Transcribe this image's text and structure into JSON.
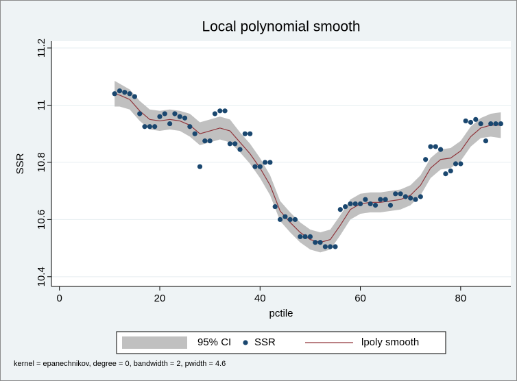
{
  "chart_data": {
    "type": "lpoly",
    "title": "Local polynomial smooth",
    "xlabel": "pctile",
    "ylabel": "SSR",
    "note": "kernel = epanechnikov, degree = 0, bandwidth = 2, pwidth = 4.6",
    "xlim": [
      -1.6,
      90
    ],
    "ylim": [
      10.366,
      11.224
    ],
    "xticks": [
      0,
      20,
      40,
      60,
      80
    ],
    "yticks": [
      10.4,
      10.6,
      10.8,
      11,
      11.2
    ],
    "grid": true,
    "legend": "bottom",
    "series": [
      {
        "name": "95% CI",
        "color": "#c0c0c0",
        "type": "area",
        "x": [
          11,
          12,
          14,
          16,
          18,
          20,
          22,
          24,
          26,
          28,
          30,
          32,
          34,
          36,
          38,
          40,
          42,
          44,
          46,
          48,
          50,
          52,
          54,
          56,
          58,
          60,
          62,
          64,
          66,
          68,
          70,
          72,
          74,
          76,
          78,
          80,
          82,
          84,
          86,
          88
        ],
        "lower": [
          10.995,
          10.995,
          10.985,
          10.945,
          10.915,
          10.91,
          10.915,
          10.91,
          10.89,
          10.86,
          10.87,
          10.88,
          10.87,
          10.835,
          10.795,
          10.745,
          10.685,
          10.595,
          10.555,
          10.52,
          10.495,
          10.485,
          10.495,
          10.545,
          10.6,
          10.62,
          10.625,
          10.625,
          10.63,
          10.635,
          10.65,
          10.685,
          10.745,
          10.775,
          10.78,
          10.805,
          10.855,
          10.885,
          10.89,
          10.885
        ],
        "upper": [
          11.085,
          11.075,
          11.055,
          11.015,
          10.985,
          10.98,
          10.985,
          10.98,
          10.97,
          10.94,
          10.95,
          10.96,
          10.95,
          10.905,
          10.865,
          10.815,
          10.755,
          10.665,
          10.625,
          10.59,
          10.565,
          10.555,
          10.565,
          10.615,
          10.67,
          10.69,
          10.695,
          10.695,
          10.7,
          10.705,
          10.72,
          10.755,
          10.815,
          10.845,
          10.85,
          10.875,
          10.925,
          10.955,
          10.97,
          10.975
        ]
      },
      {
        "name": "SSR",
        "color": "#1a476f",
        "type": "scatter",
        "x": [
          11,
          12,
          13,
          14,
          15,
          16,
          17,
          18,
          19,
          20,
          21,
          22,
          23,
          24,
          25,
          26,
          27,
          28,
          29,
          30,
          31,
          32,
          33,
          34,
          35,
          36,
          37,
          38,
          39,
          40,
          41,
          42,
          43,
          44,
          45,
          46,
          47,
          48,
          49,
          50,
          51,
          52,
          53,
          54,
          55,
          56,
          57,
          58,
          59,
          60,
          61,
          62,
          63,
          64,
          65,
          66,
          67,
          68,
          69,
          70,
          71,
          72,
          73,
          74,
          75,
          76,
          77,
          78,
          79,
          80,
          81,
          82,
          83,
          84,
          85,
          86,
          87,
          88
        ],
        "values": [
          11.04,
          11.05,
          11.045,
          11.04,
          11.03,
          10.97,
          10.925,
          10.925,
          10.925,
          10.96,
          10.97,
          10.935,
          10.97,
          10.96,
          10.955,
          10.925,
          10.9,
          10.785,
          10.875,
          10.875,
          10.97,
          10.98,
          10.98,
          10.865,
          10.865,
          10.845,
          10.9,
          10.9,
          10.785,
          10.785,
          10.8,
          10.8,
          10.645,
          10.6,
          10.61,
          10.6,
          10.6,
          10.54,
          10.54,
          10.54,
          10.52,
          10.52,
          10.505,
          10.505,
          10.505,
          10.635,
          10.645,
          10.655,
          10.655,
          10.655,
          10.67,
          10.655,
          10.65,
          10.67,
          10.67,
          10.65,
          10.69,
          10.69,
          10.68,
          10.675,
          10.67,
          10.68,
          10.81,
          10.855,
          10.855,
          10.845,
          10.76,
          10.77,
          10.795,
          10.795,
          10.945,
          10.94,
          10.95,
          10.935,
          10.875,
          10.935,
          10.935,
          10.935
        ]
      },
      {
        "name": "lpoly smooth",
        "color": "#90353b",
        "type": "line",
        "x": [
          11,
          12,
          14,
          16,
          18,
          20,
          22,
          24,
          26,
          28,
          30,
          32,
          34,
          36,
          38,
          40,
          42,
          44,
          46,
          48,
          50,
          52,
          54,
          56,
          58,
          60,
          62,
          64,
          66,
          68,
          70,
          72,
          74,
          76,
          78,
          80,
          82,
          84,
          86,
          88
        ],
        "values": [
          11.04,
          11.035,
          11.02,
          10.98,
          10.95,
          10.945,
          10.95,
          10.945,
          10.93,
          10.9,
          10.91,
          10.92,
          10.91,
          10.87,
          10.83,
          10.78,
          10.72,
          10.63,
          10.59,
          10.555,
          10.53,
          10.52,
          10.53,
          10.58,
          10.635,
          10.655,
          10.66,
          10.66,
          10.665,
          10.67,
          10.685,
          10.72,
          10.78,
          10.81,
          10.815,
          10.84,
          10.89,
          10.92,
          10.93,
          10.93
        ]
      }
    ]
  }
}
